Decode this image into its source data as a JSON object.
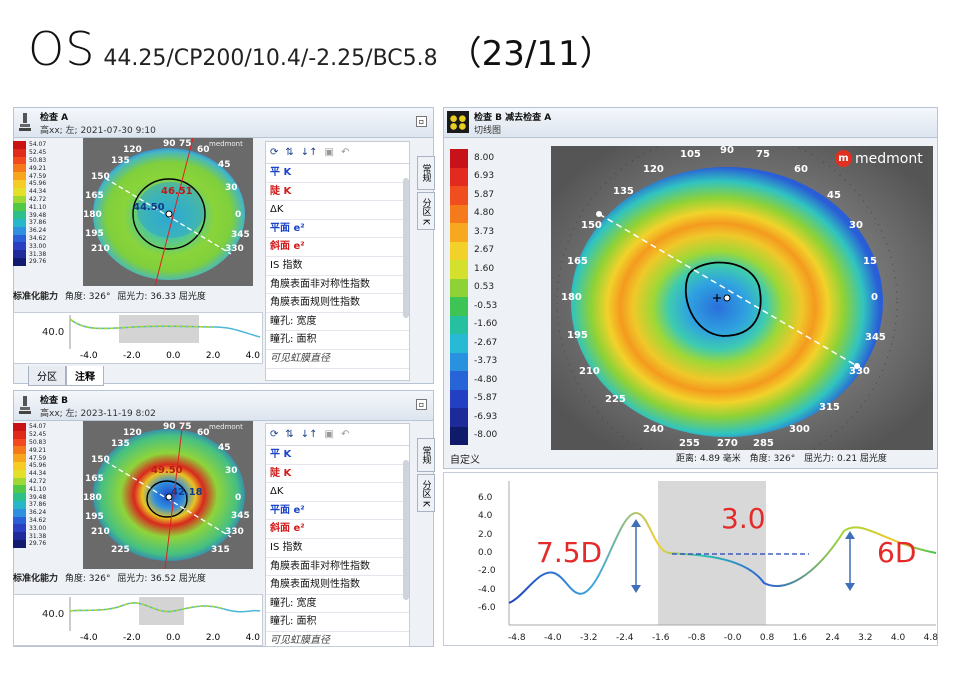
{
  "title": {
    "eye": "OS",
    "params": "44.25/CP200/10.4/-2.25/BC5.8",
    "date": "（23/11）"
  },
  "colors": {
    "accent": "#e52a2a",
    "chrome": "#eef1f6",
    "border": "#b8c4d4",
    "link_blue": "#1b44c8",
    "flat_red": "#d21a1a"
  },
  "small_scale": [
    "54.07",
    "52.45",
    "50.83",
    "49.21",
    "47.59",
    "45.96",
    "44.34",
    "42.72",
    "41.10",
    "39.48",
    "37.86",
    "36.24",
    "34.62",
    "33.00",
    "31.38",
    "29.76"
  ],
  "small_scale_colors": [
    "#c81414",
    "#e02a1a",
    "#f04a1e",
    "#f5781a",
    "#f6a51c",
    "#f4cc23",
    "#e4e02a",
    "#9fd833",
    "#52c845",
    "#2cc08d",
    "#26b7c8",
    "#2f8fe0",
    "#2b5fd6",
    "#2a3fc1",
    "#202a9b",
    "#121a70"
  ],
  "exam_a": {
    "icon": "microscope-icon",
    "title": "检查 A",
    "subtitle": "高xx; 左; 2021-07-30 9:10",
    "footer_label": "标准化能力",
    "footer_angle": "角度: 326°",
    "footer_power": "屈光力: 36.33 屈光度",
    "map_labels": {
      "deg135": "135",
      "deg120": "120",
      "deg90": "90",
      "deg75": "75",
      "deg60": "60",
      "deg45": "45",
      "deg30": "30",
      "deg150": "150",
      "deg165": "165",
      "deg180": "180",
      "deg0": "0",
      "deg195": "195",
      "deg210": "210",
      "deg345": "345",
      "deg330": "330",
      "val1": "46.51",
      "val2": "44.50",
      "brand": "medmont"
    },
    "mini_y": "40.0",
    "mini_x": [
      "-4.0",
      "-2.0",
      "0.0",
      "2.0",
      "4.0"
    ],
    "bottom_tabs": [
      "分区",
      "注释"
    ]
  },
  "exam_b_small": {
    "icon": "microscope-icon",
    "title": "检查 B",
    "subtitle": "高xx; 左; 2023-11-19 8:02",
    "footer_label": "标准化能力",
    "footer_angle": "角度: 326°",
    "footer_power": "屈光力: 36.52 屈光度",
    "map_labels": {
      "deg135": "135",
      "deg120": "120",
      "deg90": "90",
      "deg75": "75",
      "deg60": "60",
      "deg45": "45",
      "deg30": "30",
      "deg150": "150",
      "deg165": "165",
      "deg180": "180",
      "deg0": "0",
      "deg195": "195",
      "deg210": "210",
      "deg345": "345",
      "deg330": "330",
      "deg225": "225",
      "deg315": "315",
      "val1": "42.18",
      "val2": "49.50",
      "brand": "medmont"
    },
    "mini_y": "40.0",
    "mini_x": [
      "-4.0",
      "-2.0",
      "0.0",
      "2.0",
      "4.0"
    ]
  },
  "side_list": {
    "items": [
      {
        "label": "平 K",
        "style": "blue"
      },
      {
        "label": "陡 K",
        "style": "red"
      },
      {
        "label": "ΔK",
        "style": ""
      },
      {
        "label": "平面 e²",
        "style": "blue"
      },
      {
        "label": "斜面 e²",
        "style": "red"
      },
      {
        "label": "IS 指数",
        "style": ""
      },
      {
        "label": "角膜表面非对称性指数",
        "style": ""
      },
      {
        "label": "角膜表面规则性指数",
        "style": ""
      },
      {
        "label": "瞳孔: 宽度",
        "style": ""
      },
      {
        "label": "瞳孔: 面积",
        "style": ""
      },
      {
        "label": "可见虹膜直径",
        "style": "it-i"
      }
    ],
    "vtabs": [
      "常规",
      "分区 K"
    ]
  },
  "diff": {
    "title": "检查 B 减去检查 A",
    "subtitle": "切线图",
    "scale": [
      "8.00",
      "6.93",
      "5.87",
      "4.80",
      "3.73",
      "2.67",
      "1.60",
      "0.53",
      "-0.53",
      "-1.60",
      "-2.67",
      "-3.73",
      "-4.80",
      "-5.87",
      "-6.93",
      "-8.00"
    ],
    "scale_colors": [
      "#c8121a",
      "#e22a1e",
      "#f04e1e",
      "#f57a1c",
      "#f7a81e",
      "#f2d22a",
      "#d4e02e",
      "#8ed236",
      "#3ec454",
      "#24c0a0",
      "#26bad4",
      "#2892e0",
      "#2664d8",
      "#2440c2",
      "#1c2a9a",
      "#101a6a"
    ],
    "custom_label": "自定义",
    "footer_distance": "距离: 4.89 毫米",
    "footer_angle": "角度: 326°",
    "footer_power": "屈光力: 0.21 屈光度",
    "brand": "medmont",
    "map_labels": {
      "deg105": "105",
      "deg90": "90",
      "deg75": "75",
      "deg120": "120",
      "deg60": "60",
      "deg135": "135",
      "deg45": "45",
      "deg150": "150",
      "deg30": "30",
      "deg165": "165",
      "deg15": "15",
      "deg180": "180",
      "deg0": "0",
      "deg195": "195",
      "deg345": "345",
      "deg210": "210",
      "deg330": "330",
      "deg225": "225",
      "deg315": "315",
      "deg240": "240",
      "deg300": "300",
      "deg255": "255",
      "deg270": "270",
      "deg285": "285"
    }
  },
  "profile": {
    "y_ticks": [
      "6.0",
      "4.0",
      "2.0",
      "0.0",
      "-2.0",
      "-4.0",
      "-6.0"
    ],
    "x_ticks": [
      "-4.8",
      "-4.0",
      "-3.2",
      "-2.4",
      "-1.6",
      "-0.8",
      "-0.0",
      "0.8",
      "1.6",
      "2.4",
      "3.2",
      "4.0",
      "4.8"
    ],
    "annotations": {
      "left": "7.5D",
      "center": "3.0",
      "right": "6D"
    }
  }
}
